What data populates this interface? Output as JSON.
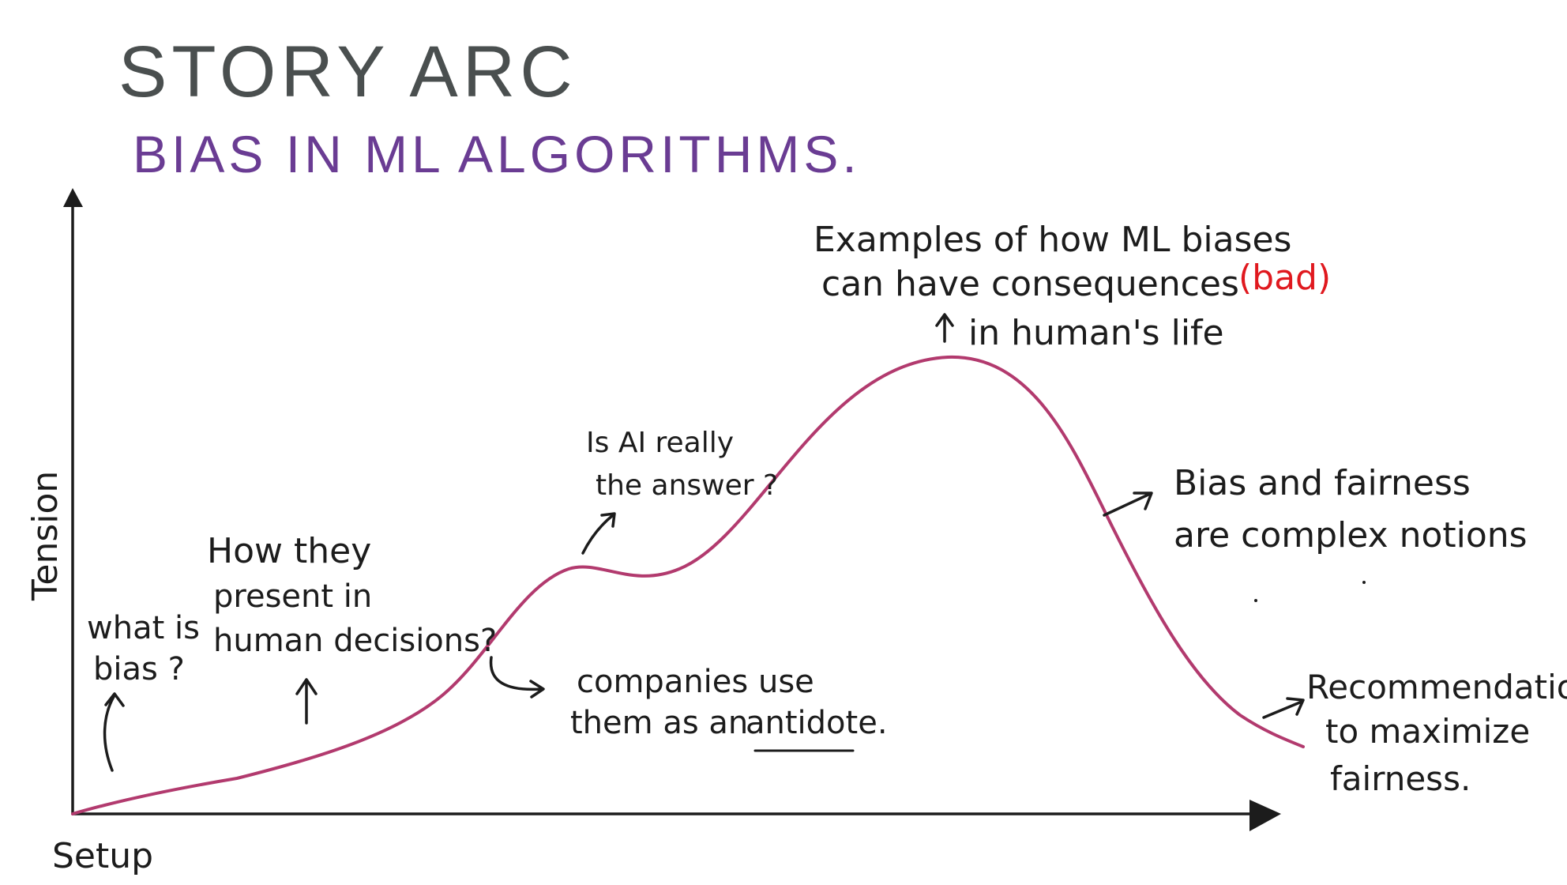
{
  "title": "STORY ARC",
  "subtitle": "BIAS IN ML ALGORITHMS.",
  "colors": {
    "title": "#4a4f4f",
    "subtitle": "#6a3c93",
    "curve": "#b23a6e",
    "ink": "#1c1c1c",
    "highlight": "#e0191f"
  },
  "axes": {
    "y_label": "Tension",
    "x_label": "Setup"
  },
  "annotations": {
    "what_is_bias": [
      "what is",
      "bias ?"
    ],
    "how_present": [
      "How they",
      "present in",
      "human decisions?"
    ],
    "companies": [
      "companies use",
      "them as an"
    ],
    "antidote": "antidote.",
    "is_ai": [
      "Is AI really",
      "the answer ?"
    ],
    "examples": [
      "Examples of how ML biases",
      "can have consequences"
    ],
    "examples_bad": "(bad)",
    "in_life": "in human's life",
    "bias_fairness": [
      "Bias and fairness",
      "are complex notions"
    ],
    "recommendations": [
      "Recommendations",
      "to maximize",
      "fairness."
    ]
  },
  "icons": [
    "arrow-up-icon",
    "curved-arrow-icon",
    "right-arrow-icon"
  ]
}
